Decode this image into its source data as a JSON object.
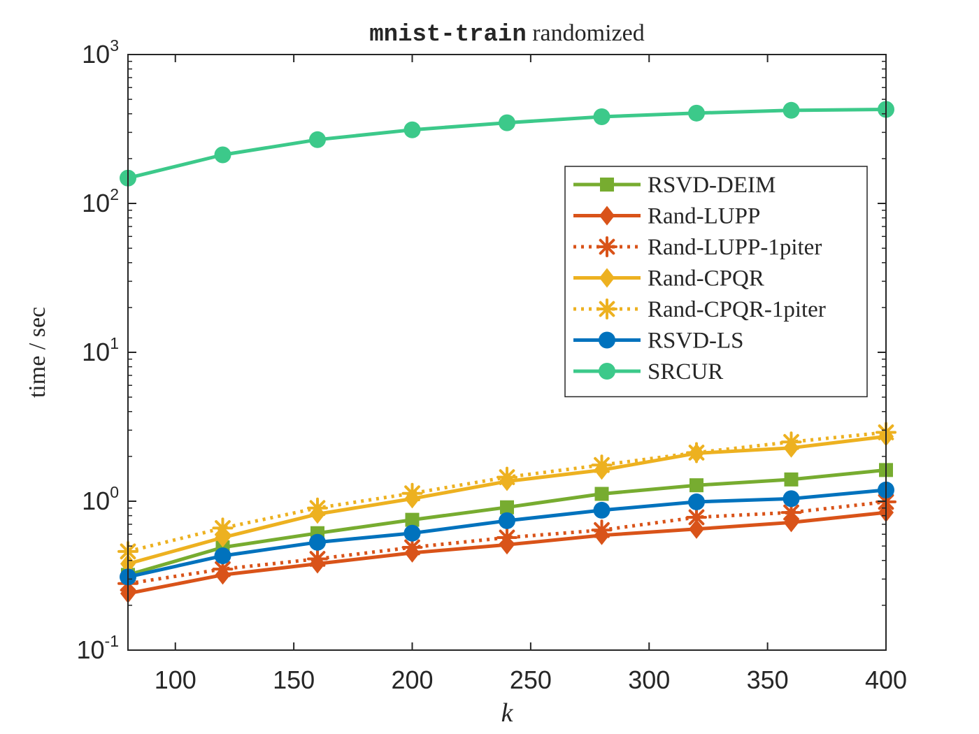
{
  "chart_data": {
    "type": "line",
    "title": {
      "mono": "mnist-train",
      "rest": " randomized"
    },
    "xlabel": "k",
    "ylabel": "time / sec",
    "y_scale": "log",
    "xlim": [
      80,
      400
    ],
    "ylim": [
      0.1,
      1000
    ],
    "x_ticks": [
      100,
      150,
      200,
      250,
      300,
      350,
      400
    ],
    "y_ticks": [
      {
        "value": 0.1,
        "base": "10",
        "exp": "-1"
      },
      {
        "value": 1,
        "base": "10",
        "exp": "0"
      },
      {
        "value": 10,
        "base": "10",
        "exp": "1"
      },
      {
        "value": 100,
        "base": "10",
        "exp": "2"
      },
      {
        "value": 1000,
        "base": "10",
        "exp": "3"
      }
    ],
    "grid": false,
    "legend_position": "right, upper-middle",
    "x": [
      80,
      120,
      160,
      200,
      240,
      280,
      320,
      360,
      400
    ],
    "series": [
      {
        "name": "RSVD-DEIM",
        "color": "#77AC30",
        "line": "solid",
        "marker": "square",
        "values": [
          0.32,
          0.49,
          0.61,
          0.75,
          0.91,
          1.12,
          1.28,
          1.4,
          1.62
        ]
      },
      {
        "name": "Rand-LUPP",
        "color": "#D95319",
        "line": "solid",
        "marker": "diamond",
        "values": [
          0.24,
          0.32,
          0.38,
          0.45,
          0.51,
          0.59,
          0.65,
          0.72,
          0.84
        ]
      },
      {
        "name": "Rand-LUPP-1piter",
        "color": "#D95319",
        "line": "dotted",
        "marker": "asterisk",
        "values": [
          0.28,
          0.35,
          0.41,
          0.49,
          0.57,
          0.64,
          0.78,
          0.84,
          0.99
        ]
      },
      {
        "name": "Rand-CPQR",
        "color": "#EDB120",
        "line": "solid",
        "marker": "diamond",
        "values": [
          0.38,
          0.57,
          0.82,
          1.04,
          1.36,
          1.62,
          2.1,
          2.28,
          2.72
        ]
      },
      {
        "name": "Rand-CPQR-1piter",
        "color": "#EDB120",
        "line": "dotted",
        "marker": "asterisk",
        "values": [
          0.46,
          0.66,
          0.9,
          1.13,
          1.45,
          1.75,
          2.12,
          2.5,
          2.9
        ]
      },
      {
        "name": "RSVD-LS",
        "color": "#0072BD",
        "line": "solid",
        "marker": "circle",
        "values": [
          0.31,
          0.43,
          0.53,
          0.61,
          0.74,
          0.87,
          0.99,
          1.04,
          1.19
        ]
      },
      {
        "name": "SRCUR",
        "color": "#3CC98A",
        "line": "solid",
        "marker": "circle",
        "values": [
          148,
          212,
          268,
          312,
          348,
          382,
          404,
          422,
          428
        ]
      }
    ]
  }
}
